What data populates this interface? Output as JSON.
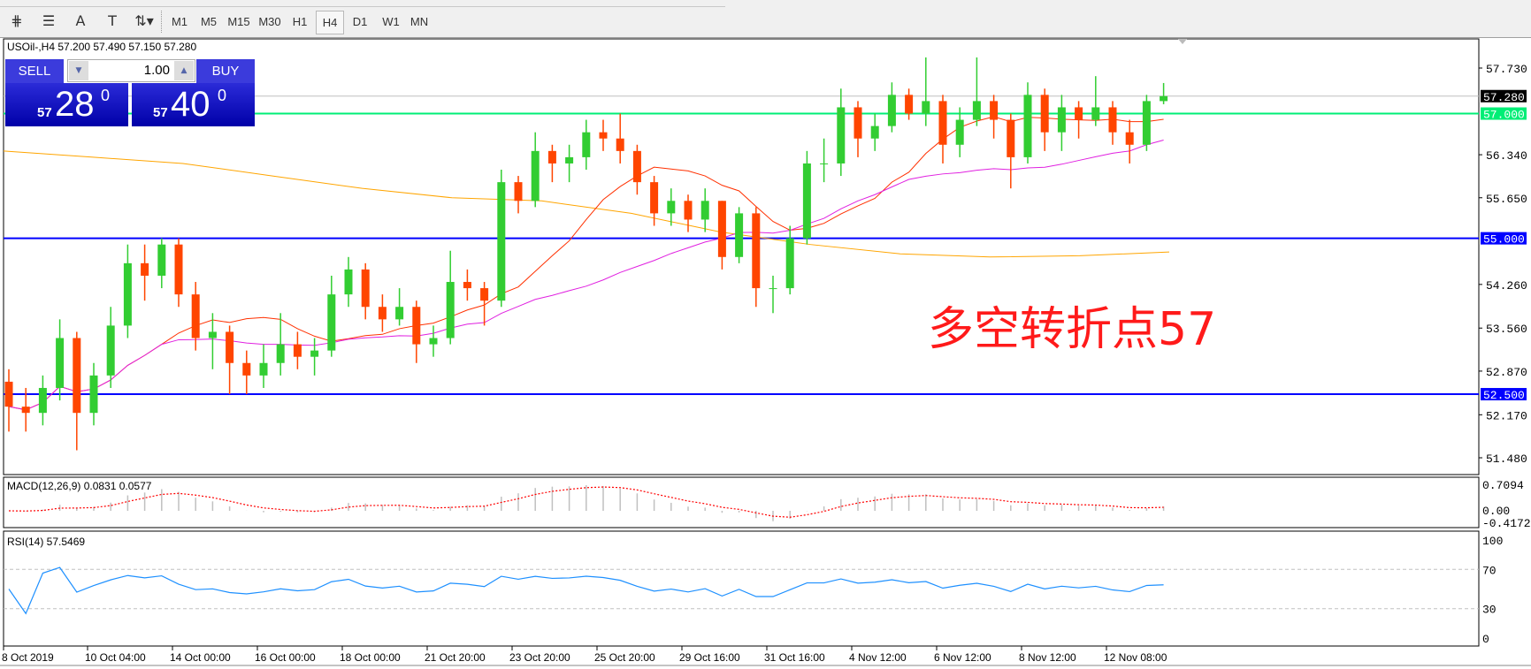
{
  "toolbar": {
    "tools": [
      {
        "name": "fibonacci-expansion-icon",
        "glyph": "⋕"
      },
      {
        "name": "fibonacci-fan-icon",
        "glyph": "☰"
      },
      {
        "name": "text-icon",
        "glyph": "A"
      },
      {
        "name": "text-label-icon",
        "glyph": "T"
      },
      {
        "name": "arrows-icon",
        "glyph": "⇅▾"
      }
    ],
    "timeframes": [
      "M1",
      "M5",
      "M15",
      "M30",
      "H1",
      "H4",
      "D1",
      "W1",
      "MN"
    ],
    "active_timeframe": "H4"
  },
  "chart": {
    "title": "USOil-,H4  57.200 57.490 57.150 57.280",
    "annotation": "多空转折点57",
    "colors": {
      "bull": "#32cd32",
      "bear": "#ff4500",
      "ma_fast": "#ff3000",
      "ma_mid": "#e020e0",
      "ma_slow": "#ffa500",
      "level_green": "#00ee76",
      "level_blue": "#0000ff",
      "macd_hist": "#c0c0c0",
      "macd_signal": "#ff0000",
      "rsi": "#1e90ff"
    }
  },
  "trade_panel": {
    "sell_label": "SELL",
    "buy_label": "BUY",
    "lot": "1.00",
    "sell_price": {
      "big": "57",
      "main": "28",
      "sup": "0"
    },
    "buy_price": {
      "big": "57",
      "main": "40",
      "sup": "0"
    }
  },
  "chart_data": {
    "type": "candlestick",
    "symbol": "USOil-",
    "timeframe": "H4",
    "ylim": [
      51.2,
      58.2
    ],
    "y_ticks": [
      "57.730",
      "56.340",
      "55.650",
      "54.260",
      "53.560",
      "52.870",
      "52.170",
      "51.480"
    ],
    "y_tick_values": [
      57.73,
      56.34,
      55.65,
      54.26,
      53.56,
      52.87,
      52.17,
      51.48
    ],
    "x_ticks": [
      "8 Oct 2019",
      "10 Oct 04:00",
      "14 Oct 00:00",
      "16 Oct 00:00",
      "18 Oct 00:00",
      "21 Oct 20:00",
      "23 Oct 20:00",
      "25 Oct 20:00",
      "29 Oct 16:00",
      "31 Oct 16:00",
      "4 Nov 12:00",
      "6 Nov 12:00",
      "8 Nov 12:00",
      "12 Nov 08:00"
    ],
    "levels": [
      {
        "value": 57.28,
        "label": "57.280",
        "kind": "bid"
      },
      {
        "value": 57.0,
        "label": "57.000",
        "kind": "green"
      },
      {
        "value": 55.0,
        "label": "55.000",
        "kind": "blue"
      },
      {
        "value": 52.5,
        "label": "52.500",
        "kind": "blue"
      }
    ],
    "candles": [
      [
        52.7,
        52.9,
        51.9,
        52.3
      ],
      [
        52.3,
        52.6,
        51.9,
        52.2
      ],
      [
        52.2,
        52.8,
        52.0,
        52.6
      ],
      [
        52.6,
        53.7,
        52.4,
        53.4
      ],
      [
        53.4,
        53.5,
        51.6,
        52.2
      ],
      [
        52.2,
        53.0,
        52.0,
        52.8
      ],
      [
        52.8,
        53.9,
        52.6,
        53.6
      ],
      [
        53.6,
        54.9,
        53.4,
        54.6
      ],
      [
        54.6,
        54.9,
        54.0,
        54.4
      ],
      [
        54.4,
        55.0,
        54.2,
        54.9
      ],
      [
        54.9,
        55.0,
        53.9,
        54.1
      ],
      [
        54.1,
        54.3,
        53.2,
        53.4
      ],
      [
        53.4,
        53.8,
        52.9,
        53.5
      ],
      [
        53.5,
        53.6,
        52.5,
        53.0
      ],
      [
        53.0,
        53.2,
        52.5,
        52.8
      ],
      [
        52.8,
        53.3,
        52.6,
        53.0
      ],
      [
        53.0,
        53.8,
        52.8,
        53.3
      ],
      [
        53.3,
        53.5,
        52.9,
        53.1
      ],
      [
        53.1,
        53.4,
        52.8,
        53.2
      ],
      [
        53.2,
        54.4,
        53.1,
        54.1
      ],
      [
        54.1,
        54.7,
        53.9,
        54.5
      ],
      [
        54.5,
        54.6,
        53.7,
        53.9
      ],
      [
        53.9,
        54.1,
        53.5,
        53.7
      ],
      [
        53.7,
        54.2,
        53.6,
        53.9
      ],
      [
        53.9,
        54.0,
        53.0,
        53.3
      ],
      [
        53.3,
        53.6,
        53.1,
        53.4
      ],
      [
        53.4,
        54.8,
        53.3,
        54.3
      ],
      [
        54.3,
        54.5,
        54.0,
        54.2
      ],
      [
        54.2,
        54.3,
        53.6,
        54.0
      ],
      [
        54.0,
        56.1,
        53.9,
        55.9
      ],
      [
        55.9,
        56.0,
        55.4,
        55.6
      ],
      [
        55.6,
        56.7,
        55.5,
        56.4
      ],
      [
        56.4,
        56.5,
        55.9,
        56.2
      ],
      [
        56.2,
        56.5,
        55.9,
        56.3
      ],
      [
        56.3,
        56.9,
        56.1,
        56.7
      ],
      [
        56.7,
        56.9,
        56.4,
        56.6
      ],
      [
        56.6,
        57.0,
        56.2,
        56.4
      ],
      [
        56.4,
        56.5,
        55.7,
        55.9
      ],
      [
        55.9,
        56.0,
        55.2,
        55.4
      ],
      [
        55.4,
        55.8,
        55.2,
        55.6
      ],
      [
        55.6,
        55.7,
        55.1,
        55.3
      ],
      [
        55.3,
        55.8,
        55.1,
        55.6
      ],
      [
        55.6,
        55.6,
        54.5,
        54.7
      ],
      [
        54.7,
        55.5,
        54.6,
        55.4
      ],
      [
        55.4,
        55.5,
        53.9,
        54.2
      ],
      [
        54.2,
        54.4,
        53.8,
        54.2
      ],
      [
        54.2,
        55.2,
        54.1,
        55.0
      ],
      [
        55.0,
        56.4,
        54.9,
        56.2
      ],
      [
        56.2,
        56.6,
        55.9,
        56.2
      ],
      [
        56.2,
        57.4,
        56.0,
        57.1
      ],
      [
        57.1,
        57.2,
        56.3,
        56.6
      ],
      [
        56.6,
        57.0,
        56.4,
        56.8
      ],
      [
        56.8,
        57.5,
        56.7,
        57.3
      ],
      [
        57.3,
        57.4,
        56.9,
        57.0
      ],
      [
        57.0,
        57.9,
        56.8,
        57.2
      ],
      [
        57.2,
        57.3,
        56.2,
        56.5
      ],
      [
        56.5,
        57.1,
        56.3,
        56.9
      ],
      [
        56.9,
        57.9,
        56.8,
        57.2
      ],
      [
        57.2,
        57.3,
        56.6,
        56.9
      ],
      [
        56.9,
        57.0,
        55.8,
        56.3
      ],
      [
        56.3,
        57.5,
        56.2,
        57.3
      ],
      [
        57.3,
        57.4,
        56.4,
        56.7
      ],
      [
        56.7,
        57.3,
        56.4,
        57.1
      ],
      [
        57.1,
        57.2,
        56.6,
        56.9
      ],
      [
        56.9,
        57.6,
        56.8,
        57.1
      ],
      [
        57.1,
        57.2,
        56.5,
        56.7
      ],
      [
        56.7,
        56.9,
        56.2,
        56.5
      ],
      [
        56.5,
        57.3,
        56.4,
        57.2
      ],
      [
        57.2,
        57.49,
        57.15,
        57.28
      ]
    ],
    "ma_slow": [
      56.4,
      56.3,
      56.2,
      56.0,
      55.8,
      55.65,
      55.6,
      55.4,
      55.1,
      54.9,
      54.75,
      54.7,
      54.72,
      54.78
    ],
    "macd": {
      "label": "MACD(12,26,9) 0.0831 0.0577",
      "ticks": [
        "0.7094",
        "0.00",
        "-0.4172"
      ],
      "max": 0.7094,
      "min": -0.4172
    },
    "rsi": {
      "label": "RSI(14) 57.5469",
      "ticks": [
        "100",
        "70",
        "30",
        "0"
      ],
      "levels": [
        70,
        30
      ]
    }
  }
}
